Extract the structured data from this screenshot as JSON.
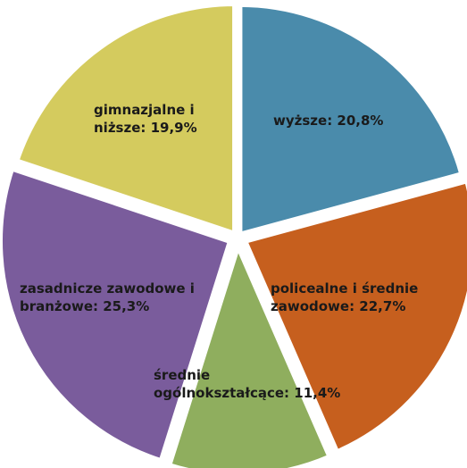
{
  "chart_data": {
    "type": "pie",
    "title": "",
    "slices": [
      {
        "label_lines": [
          "wyższe: 20,8%"
        ],
        "value": 20.8,
        "color": "#4A8BAB"
      },
      {
        "label_lines": [
          "policealne i średnie",
          "zawodowe: 22,7%"
        ],
        "value": 22.7,
        "color": "#C65F1E"
      },
      {
        "label_lines": [
          "średnie",
          "ogólnokształcące: 11,4%"
        ],
        "value": 11.4,
        "color": "#8FAE5E"
      },
      {
        "label_lines": [
          "zasadnicze zawodowe i",
          "branżowe: 25,3%"
        ],
        "value": 25.3,
        "color": "#7A5C9C"
      },
      {
        "label_lines": [
          "gimnazjalne i",
          "niższe: 19,9%"
        ],
        "value": 19.9,
        "color": "#D4CB5E"
      }
    ],
    "legend": "none"
  }
}
